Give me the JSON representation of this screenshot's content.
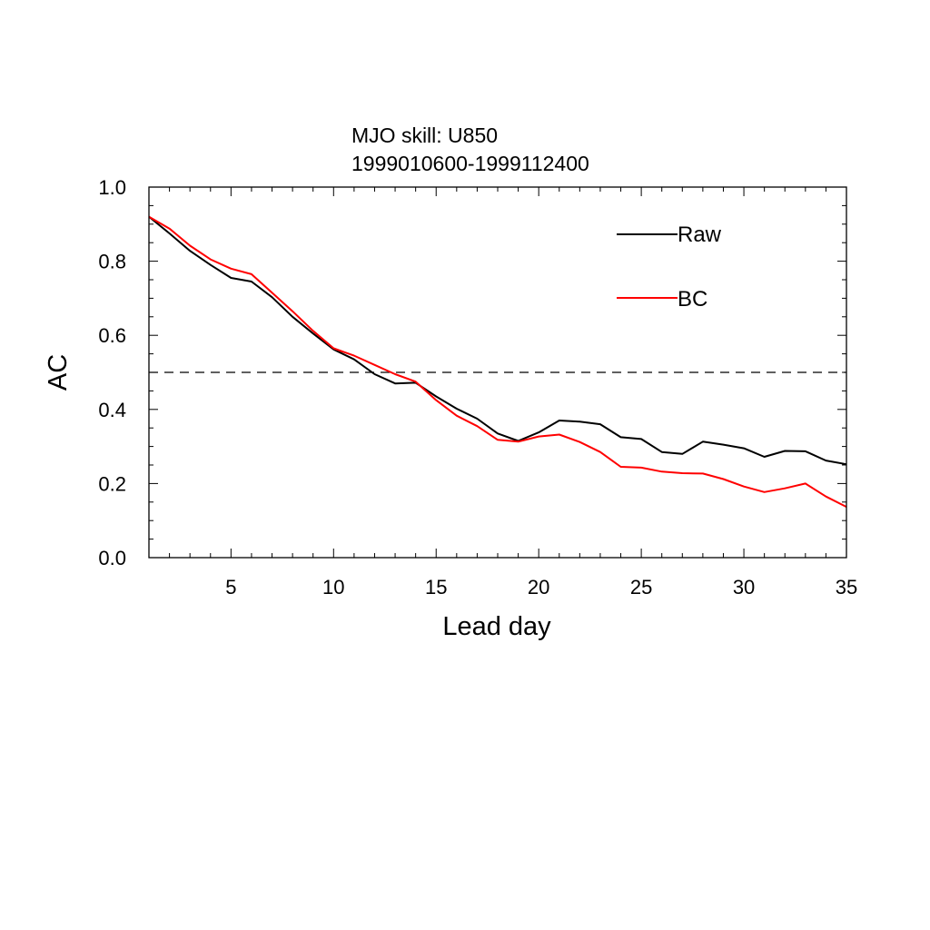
{
  "chart_data": {
    "type": "line",
    "title": "MJO skill: U850",
    "subtitle": "1999010600-1999112400",
    "xlabel": "Lead day",
    "ylabel": "AC",
    "xlim": [
      1,
      35
    ],
    "ylim": [
      0,
      1
    ],
    "x_ticks": [
      5,
      10,
      15,
      20,
      25,
      30,
      35
    ],
    "y_ticks": [
      0.0,
      0.2,
      0.4,
      0.6,
      0.8,
      1.0
    ],
    "x_tick_labels": [
      "5",
      "10",
      "15",
      "20",
      "25",
      "30",
      "35"
    ],
    "y_tick_labels": [
      "0.0",
      "0.2",
      "0.4",
      "0.6",
      "0.8",
      "1.0"
    ],
    "grid": false,
    "legend_position": "top-right",
    "reference_line": {
      "y": 0.5,
      "style": "dashed",
      "color": "#000000"
    },
    "x": [
      1,
      2,
      3,
      4,
      5,
      6,
      7,
      8,
      9,
      10,
      11,
      12,
      13,
      14,
      15,
      16,
      17,
      18,
      19,
      20,
      21,
      22,
      23,
      24,
      25,
      26,
      27,
      28,
      29,
      30,
      31,
      32,
      33,
      34,
      35
    ],
    "series": [
      {
        "name": "Raw",
        "color": "#000000",
        "values": [
          0.92,
          0.875,
          0.828,
          0.79,
          0.755,
          0.745,
          0.703,
          0.65,
          0.605,
          0.562,
          0.535,
          0.495,
          0.47,
          0.472,
          0.435,
          0.402,
          0.375,
          0.335,
          0.315,
          0.338,
          0.37,
          0.367,
          0.36,
          0.325,
          0.32,
          0.285,
          0.28,
          0.313,
          0.305,
          0.295,
          0.272,
          0.288,
          0.287,
          0.262,
          0.252
        ]
      },
      {
        "name": "BC",
        "color": "#ff0000",
        "values": [
          0.92,
          0.888,
          0.842,
          0.805,
          0.78,
          0.765,
          0.715,
          0.665,
          0.612,
          0.565,
          0.545,
          0.52,
          0.495,
          0.475,
          0.425,
          0.383,
          0.355,
          0.318,
          0.313,
          0.327,
          0.332,
          0.312,
          0.285,
          0.245,
          0.243,
          0.232,
          0.228,
          0.227,
          0.212,
          0.192,
          0.177,
          0.187,
          0.2,
          0.165,
          0.137
        ]
      }
    ]
  }
}
